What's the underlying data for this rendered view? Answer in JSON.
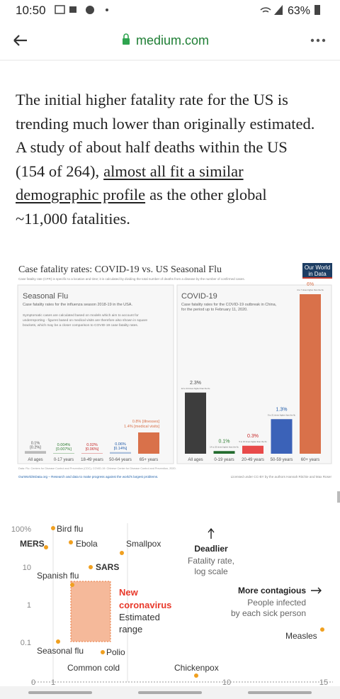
{
  "status_bar": {
    "time": "10:50",
    "battery": "63%"
  },
  "browser_bar": {
    "url": "medium.com"
  },
  "article": {
    "lines": [
      "The initial higher fatality rate for the US is",
      "trending much lower than originally estimated.",
      "A study of about half deaths within the US",
      "(154 of 264),",
      "as the other global",
      "~11,000 fatalities."
    ],
    "link": [
      "almost all fit a similar",
      "demographic profile"
    ]
  },
  "figure1": {
    "title": "Case fatality rates: COVID-19 vs. US Seasonal Flu",
    "subtitle": "Case fatality rate (CFR) is specific to a location and time; it is calculated by dividing the total number of deaths from a disease by the number of confirmed cases.",
    "logo": [
      "Our World",
      "in Data"
    ],
    "left": {
      "title": "Seasonal Flu",
      "subtitle": "Case fatality rates for the influenza season 2018-19 in the USA.",
      "note": [
        "Symptomatic cases are calculated based on models which aim to account for",
        "underreporting - figures based on medical visits are therefore also shown in square",
        "brackets, which may be a closer comparison to COVID-19 case fatality rates."
      ],
      "bars": [
        {
          "label": "All ages",
          "value": "0.1%",
          "alt": "[0.2%]"
        },
        {
          "label": "0-17 years",
          "value": "0.004%",
          "alt": "[0.007%]"
        },
        {
          "label": "18-49 years",
          "value": "0.02%",
          "alt": "[0.06%]"
        },
        {
          "label": "50-64 years",
          "value": "0.06%",
          "alt": "[0.14%]"
        },
        {
          "label": "65+ years",
          "value": "0.8% [illnesses]",
          "alt": "1.4% [medical visits]"
        }
      ]
    },
    "right": {
      "title": "COVID-19",
      "subtitle": [
        "Case fatality rates for the COVID-19 outbreak in China,",
        "for the period up to February 11, 2020."
      ],
      "bars": [
        {
          "label": "All ages",
          "value": "2.3%",
          "note": "12 to 24 times higher than the flu"
        },
        {
          "label": "0-19 years",
          "value": "0.1%",
          "note": "14 to 25 times higher than the flu"
        },
        {
          "label": "20-49 years",
          "value": "0.3%",
          "note": "5 to 15 times higher than the flu"
        },
        {
          "label": "50-59 years",
          "value": "1.3%",
          "note": "9 to 21 times higher than the flu"
        },
        {
          "label": "60+ years",
          "value": "6%",
          "note": "4 to 7 times higher than the flu"
        }
      ]
    },
    "source": "Data: Flu: Centers for Disease Control and Prevention (CDC); COVID-19: Chinese Center for Disease Control and Prevention, 2020.",
    "footer_left": "OurWorldInData.org – Research and data to make progress against the world's largest problems.",
    "footer_right": "Licensed under CC-BY by the authors Hannah Ritchie and Max Roser"
  },
  "figure2": {
    "yticks": [
      "100%",
      "10",
      "1",
      "0.1"
    ],
    "xticks": [
      "0",
      "1",
      "10",
      "15"
    ],
    "points": [
      "MERS",
      "Bird flu",
      "Ebola",
      "Smallpox",
      "SARS",
      "Spanish flu",
      "Measles",
      "Seasonal flu",
      "Polio",
      "Common cold",
      "Chickenpox"
    ],
    "highlight": [
      "New",
      "coronavirus"
    ],
    "range": [
      "Estimated",
      "range"
    ],
    "y_title": "Deadlier",
    "y_note": [
      "Fatality rate,",
      "log scale"
    ],
    "x_title": "More contagious",
    "x_note": [
      "People infected",
      "by each sick person"
    ]
  }
}
